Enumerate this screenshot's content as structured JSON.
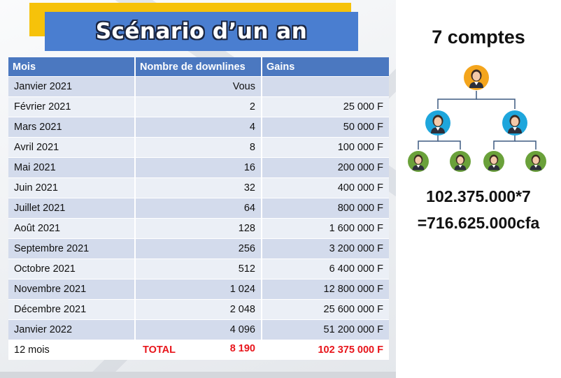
{
  "slide": {
    "title": "Scénario d’un an",
    "table": {
      "headers": [
        "Mois",
        "Nombre de downlines",
        "Gains"
      ],
      "rows": [
        {
          "mois": "Janvier 2021",
          "downlines": "Vous",
          "gains": ""
        },
        {
          "mois": "Février 2021",
          "downlines": "2",
          "gains": "25 000 F"
        },
        {
          "mois": "Mars 2021",
          "downlines": "4",
          "gains": "50 000 F"
        },
        {
          "mois": "Avril 2021",
          "downlines": "8",
          "gains": "100 000 F"
        },
        {
          "mois": "Mai 2021",
          "downlines": "16",
          "gains": "200 000 F"
        },
        {
          "mois": "Juin 2021",
          "downlines": "32",
          "gains": "400 000 F"
        },
        {
          "mois": "Juillet 2021",
          "downlines": "64",
          "gains": "800 000 F"
        },
        {
          "mois": "Août 2021",
          "downlines": "128",
          "gains": "1 600 000 F"
        },
        {
          "mois": "Septembre 2021",
          "downlines": "256",
          "gains": "3 200 000 F"
        },
        {
          "mois": "Octobre 2021",
          "downlines": "512",
          "gains": "6 400 000 F"
        },
        {
          "mois": "Novembre 2021",
          "downlines": "1 024",
          "gains": "12 800 000 F"
        },
        {
          "mois": "Décembre 2021",
          "downlines": "2 048",
          "gains": "25 600 000 F"
        },
        {
          "mois": "Janvier 2022",
          "downlines": "4 096",
          "gains": "51 200 000 F"
        }
      ],
      "total": {
        "mois": "12 mois",
        "label": "TOTAL",
        "downlines": "8 190",
        "gains": "102 375 000 F"
      }
    }
  },
  "side": {
    "accounts_title": "7 comptes",
    "formula_line1": "102.375.000*7",
    "formula_line2": "=716.625.000cfa",
    "tree_icons": {
      "root": "person-icon",
      "level2": "person-icon",
      "level3": "person-icon"
    }
  },
  "colors": {
    "banner_yellow": "#f6c20a",
    "banner_blue": "#4a7ed0",
    "table_header": "#4b78c0",
    "row_dark": "#d3dbec",
    "row_light": "#ebeff6",
    "total_red": "#e8151b",
    "root_node": "#f4a51c",
    "mid_node": "#1ea6dc",
    "leaf_node": "#6aa13a",
    "tree_line": "#3d5a80"
  }
}
